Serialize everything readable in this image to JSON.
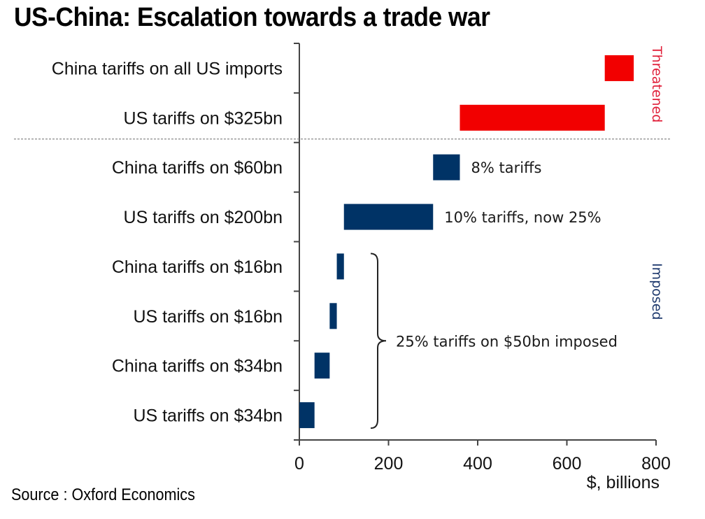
{
  "header": {
    "title": "US-China: Escalation towards a trade war"
  },
  "footer": {
    "source": "Source : Oxford Economics"
  },
  "chart_data": {
    "type": "bar",
    "orientation": "horizontal",
    "subtype": "floating-waterfall",
    "title": "US-China: Escalation towards a trade war",
    "xlabel": "$, billions",
    "ylabel": "",
    "xlim": [
      0,
      800
    ],
    "xticks": [
      0,
      200,
      400,
      600,
      800
    ],
    "grid": false,
    "categories": [
      "China tariffs on all US imports",
      "US tariffs on $325bn",
      "China tariffs on $60bn",
      "US tariffs on $200bn",
      "China tariffs on $16bn",
      "US tariffs on $16bn",
      "China tariffs on $34bn",
      "US tariffs on $34bn"
    ],
    "bars": [
      {
        "category": "China tariffs on all US imports",
        "start": 685,
        "end": 750,
        "group": "threatened"
      },
      {
        "category": "US tariffs on $325bn",
        "start": 360,
        "end": 685,
        "group": "threatened"
      },
      {
        "category": "China tariffs on $60bn",
        "start": 300,
        "end": 360,
        "group": "imposed"
      },
      {
        "category": "US tariffs on $200bn",
        "start": 100,
        "end": 300,
        "group": "imposed"
      },
      {
        "category": "China tariffs on $16bn",
        "start": 84,
        "end": 100,
        "group": "imposed"
      },
      {
        "category": "US tariffs on $16bn",
        "start": 68,
        "end": 84,
        "group": "imposed"
      },
      {
        "category": "China tariffs on $34bn",
        "start": 34,
        "end": 68,
        "group": "imposed"
      },
      {
        "category": "US tariffs on $34bn",
        "start": 0,
        "end": 34,
        "group": "imposed"
      }
    ],
    "groups": {
      "threatened": {
        "label": "Threatened",
        "color": "#f20000",
        "text_color": "#e0203a"
      },
      "imposed": {
        "label": "Imposed",
        "color": "#003366",
        "text_color": "#1f3a6e"
      }
    },
    "annotations": [
      {
        "text": "8% tariffs",
        "category": "China tariffs on $60bn"
      },
      {
        "text": "10% tariffs, now 25%",
        "category": "US tariffs on $200bn"
      },
      {
        "text": "25% tariffs on $50bn imposed",
        "brace_categories": [
          "China tariffs on $16bn",
          "US tariffs on $34bn"
        ]
      }
    ],
    "separator": {
      "style": "dotted",
      "between": [
        "US tariffs on $325bn",
        "China tariffs on $60bn"
      ]
    }
  }
}
